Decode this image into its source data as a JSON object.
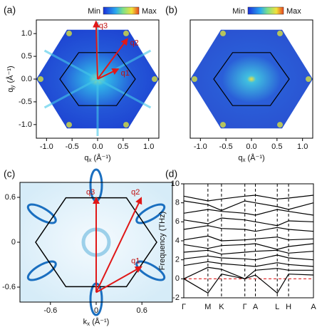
{
  "chart_data": [
    {
      "type": "heatmap",
      "panel": "(a)",
      "colorbar": {
        "min": "Min",
        "max": "Max"
      },
      "xlabel": {
        "symbol": "q",
        "sub": "x",
        "unit": " (Å⁻¹)"
      },
      "ylabel": {
        "symbol": "q",
        "sub": "y",
        "unit": " (Å⁻¹)"
      },
      "xlim": [
        -1.2,
        1.2
      ],
      "ylim": [
        -1.3,
        1.3
      ],
      "xticks": [
        {
          "value": -1,
          "label": "-1.0"
        },
        {
          "value": -0.5,
          "label": "-0.5"
        },
        {
          "value": 0,
          "label": "0.0"
        },
        {
          "value": 0.5,
          "label": "0.5"
        },
        {
          "value": 1,
          "label": "1.0"
        }
      ],
      "yticks": [
        {
          "value": 1,
          "label": "1.0"
        },
        {
          "value": 0.5,
          "label": "0.5"
        },
        {
          "value": 0,
          "label": "0.0"
        },
        {
          "value": -0.5,
          "label": "-0.5"
        },
        {
          "value": -1,
          "label": "-1.0"
        }
      ],
      "arrows": [
        {
          "label": "q1",
          "end": [
            0.4,
            0.22
          ]
        },
        {
          "label": "q2",
          "end": [
            0.58,
            0.88
          ]
        },
        {
          "label": "q3",
          "end": [
            -0.03,
            1.26
          ]
        }
      ]
    },
    {
      "type": "heatmap",
      "panel": "(b)",
      "colorbar": {
        "min": "Min",
        "max": "Max"
      },
      "xlabel": {
        "symbol": "q",
        "sub": "x",
        "unit": " (Å⁻¹)"
      },
      "xlim": [
        -1.2,
        1.2
      ],
      "ylim": [
        -1.3,
        1.3
      ],
      "xticks": [
        {
          "value": -1,
          "label": "-1.0"
        },
        {
          "value": -0.5,
          "label": "-0.5"
        },
        {
          "value": 0,
          "label": "0.0"
        },
        {
          "value": 0.5,
          "label": "0.5"
        },
        {
          "value": 1,
          "label": "1.0"
        }
      ]
    },
    {
      "type": "fermi",
      "panel": "(c)",
      "xlabel": {
        "symbol": "k",
        "sub": "x",
        "unit": " (Å⁻¹)"
      },
      "ylabel": {
        "symbol": "k",
        "sub": "y",
        "unit": " (Å⁻¹)"
      },
      "xlim": [
        -1.0,
        1.0
      ],
      "ylim": [
        -0.8,
        0.8
      ],
      "xticks": [
        -0.6,
        0,
        0.6
      ],
      "yticks": [
        0.6,
        0,
        -0.6
      ],
      "arrows": [
        {
          "label": "q1",
          "end": [
            0.59,
            -0.33
          ]
        },
        {
          "label": "q2",
          "end": [
            0.59,
            0.59
          ]
        },
        {
          "label": "q3",
          "end": [
            0,
            0.59
          ]
        }
      ],
      "arrow_origin": [
        0,
        -0.67
      ]
    },
    {
      "type": "line",
      "panel": "(d)",
      "ylabel": "Frequency (THz)",
      "ylim": [
        -2,
        10
      ],
      "yticks": [
        10,
        8,
        6,
        4,
        2,
        0,
        -2
      ],
      "xlim": [
        0,
        1.72
      ],
      "xticks": [
        {
          "value": 0,
          "label": "Γ"
        },
        {
          "value": 0.32,
          "label": "M"
        },
        {
          "value": 0.5,
          "label": "K"
        },
        {
          "value": 0.81,
          "label": "Γ"
        },
        {
          "value": 0.95,
          "label": "A"
        },
        {
          "value": 1.24,
          "label": "L"
        },
        {
          "value": 1.39,
          "label": "H"
        },
        {
          "value": 1.72,
          "label": "A"
        }
      ],
      "x": [
        0,
        0.32,
        0.5,
        0.81,
        0.95,
        1.24,
        1.39,
        1.72
      ],
      "reference_line": {
        "value": 0,
        "color": "#e02020"
      },
      "series": [
        {
          "color": "#000",
          "values": [
            8.7,
            8.2,
            8.4,
            8.7,
            8.8,
            8.4,
            8.5,
            8.8
          ]
        },
        {
          "color": "#000",
          "values": [
            8.2,
            7.8,
            7.2,
            8.2,
            8.0,
            7.6,
            7.3,
            8.0
          ]
        },
        {
          "color": "#000",
          "values": [
            6.9,
            7.3,
            7.1,
            6.9,
            6.7,
            7.3,
            7.1,
            6.7
          ]
        },
        {
          "color": "#000",
          "values": [
            6.2,
            5.8,
            6.4,
            6.2,
            6.0,
            5.6,
            6.1,
            6.0
          ]
        },
        {
          "color": "#000",
          "values": [
            5.2,
            5.6,
            5.3,
            5.2,
            5.0,
            5.4,
            5.2,
            5.0
          ]
        },
        {
          "color": "#000",
          "values": [
            4.1,
            4.5,
            4.0,
            4.1,
            4.2,
            4.4,
            4.1,
            4.2
          ]
        },
        {
          "color": "#000",
          "values": [
            3.6,
            3.2,
            3.5,
            3.6,
            3.7,
            3.1,
            3.4,
            3.7
          ]
        },
        {
          "color": "#000",
          "values": [
            2.8,
            3.0,
            2.6,
            2.8,
            2.9,
            3.0,
            2.7,
            2.9
          ]
        },
        {
          "color": "#000",
          "values": [
            2.1,
            2.4,
            2.2,
            2.1,
            2.0,
            2.5,
            2.2,
            2.0
          ]
        },
        {
          "color": "#000",
          "values": [
            1.4,
            1.8,
            1.6,
            1.4,
            1.3,
            1.7,
            1.5,
            1.3
          ]
        },
        {
          "color": "#000",
          "values": [
            0,
            1.2,
            1.0,
            0,
            0.9,
            1.1,
            0.9,
            0.9
          ]
        },
        {
          "color": "#000",
          "values": [
            0,
            -1.5,
            0.5,
            0,
            0.4,
            -1.5,
            0.5,
            0.4
          ]
        }
      ]
    }
  ]
}
